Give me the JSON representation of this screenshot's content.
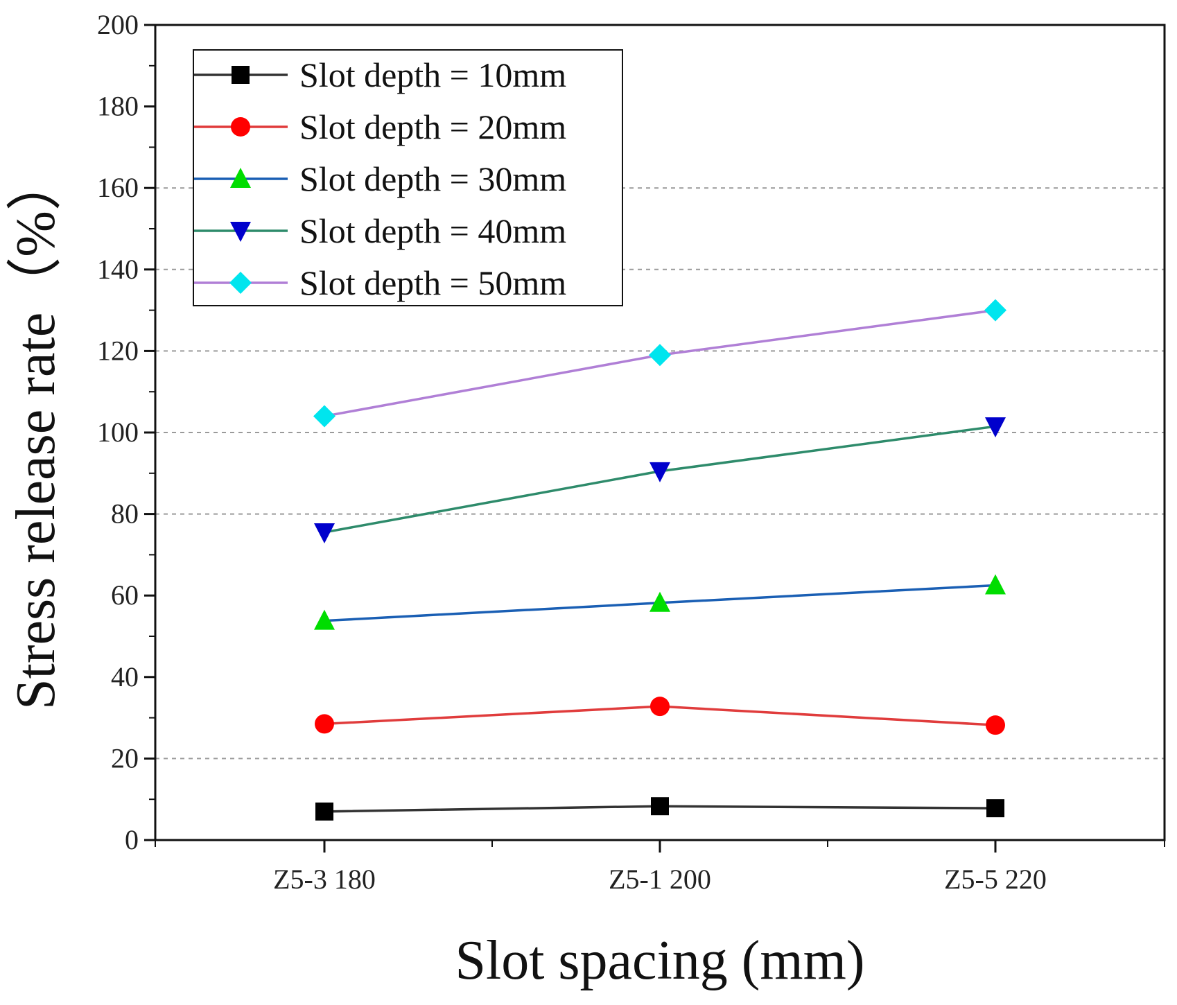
{
  "chart_data": {
    "type": "line",
    "title": "",
    "xlabel": "Slot spacing (mm)",
    "ylabel": "Stress release rate（%）",
    "categories": [
      "Z5-3 180",
      "Z5-1 200",
      "Z5-5 220"
    ],
    "ylim": [
      0,
      200
    ],
    "yticks": [
      0,
      20,
      40,
      60,
      80,
      100,
      120,
      140,
      160,
      180,
      200
    ],
    "grid": "horizontal dashed at 20, 80, 100, 120, 140, 160",
    "legend_position": "top-left",
    "series": [
      {
        "name": "Slot depth = 10mm",
        "values": [
          7,
          8.3,
          7.8
        ],
        "color": "#333333",
        "marker": "square",
        "marker_color": "#000000"
      },
      {
        "name": "Slot depth = 20mm",
        "values": [
          28.5,
          32.8,
          28.2
        ],
        "color": "#e03c3c",
        "marker": "circle",
        "marker_color": "#ff0000"
      },
      {
        "name": "Slot depth = 30mm",
        "values": [
          53.8,
          58.2,
          62.5
        ],
        "color": "#1a5fb4",
        "marker": "triangle-up",
        "marker_color": "#00dd00"
      },
      {
        "name": "Slot depth = 40mm",
        "values": [
          75.5,
          90.5,
          101.5
        ],
        "color": "#2e8b6b",
        "marker": "triangle-down",
        "marker_color": "#0000cc"
      },
      {
        "name": "Slot depth = 50mm",
        "values": [
          104,
          119,
          130
        ],
        "color": "#b07fd6",
        "marker": "diamond",
        "marker_color": "#00e5ee"
      }
    ]
  }
}
